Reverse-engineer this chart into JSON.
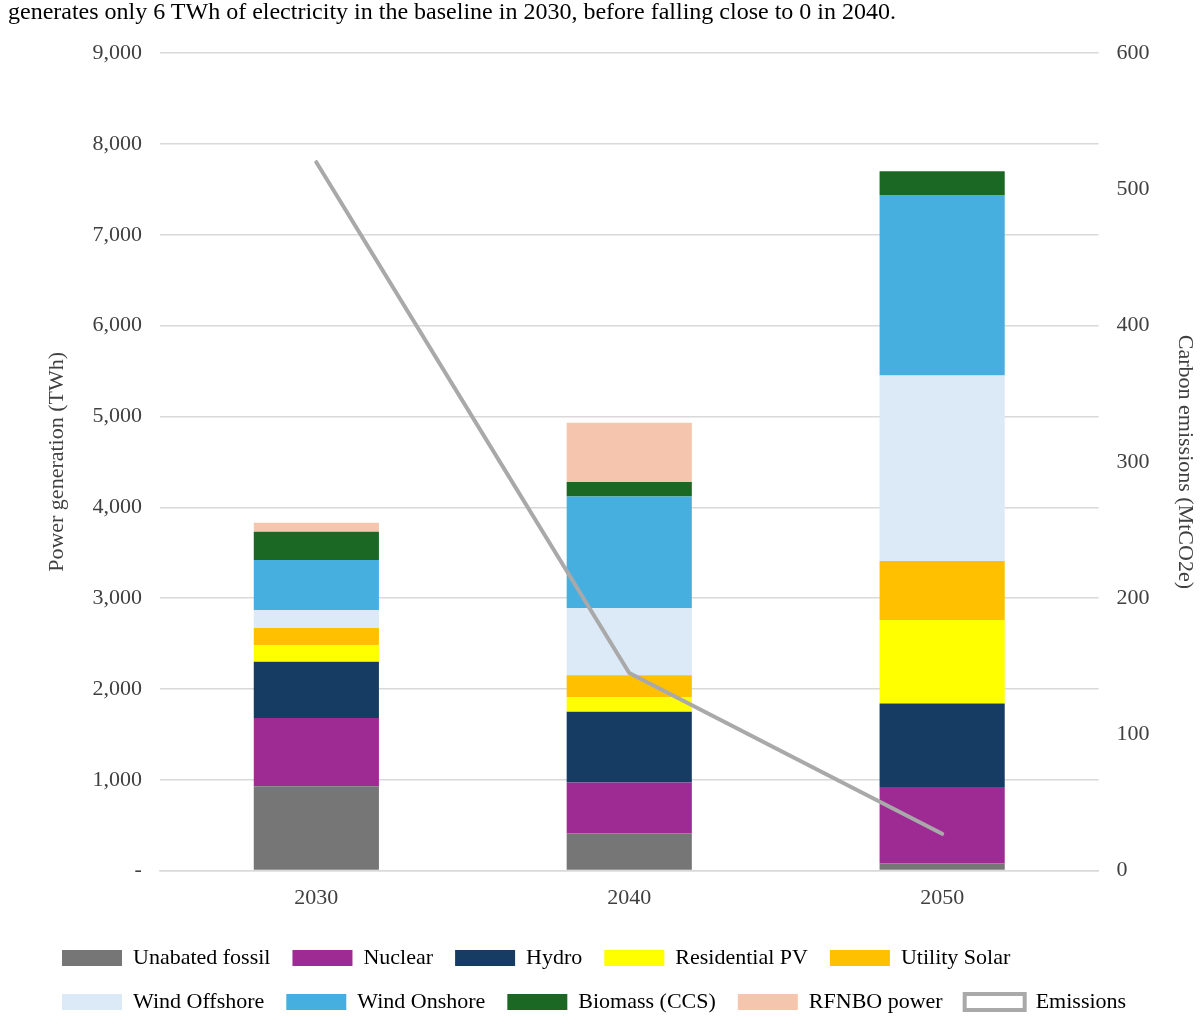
{
  "chart_data": {
    "type": "bar",
    "stacked": true,
    "annotations": [
      "generates only 6 TWh of electricity in the baseline in 2030, before falling close to 0 in 2040."
    ],
    "ylabel": "Power generation (TWh)",
    "y2label": "Carbon emissions (MtCO2e)",
    "categories": [
      "2030",
      "2040",
      "2050"
    ],
    "series": [
      {
        "name": "Unabated fossil",
        "color": "#767676",
        "values": [
          930,
          410,
          80
        ]
      },
      {
        "name": "Nuclear",
        "color": "#9e2a93",
        "values": [
          750,
          560,
          840
        ]
      },
      {
        "name": "Hydro",
        "color": "#173c63",
        "values": [
          620,
          780,
          920
        ]
      },
      {
        "name": "Residential PV",
        "color": "#ffff00",
        "values": [
          180,
          160,
          920
        ]
      },
      {
        "name": "Utility Solar",
        "color": "#ffc000",
        "values": [
          190,
          240,
          650
        ]
      },
      {
        "name": "Wind Offshore",
        "color": "#dce9f6",
        "values": [
          200,
          740,
          2040
        ]
      },
      {
        "name": "Wind Onshore",
        "color": "#46afdf",
        "values": [
          550,
          1230,
          1990
        ]
      },
      {
        "name": "Biomass (CCS)",
        "color": "#1b6824",
        "values": [
          310,
          160,
          260
        ]
      },
      {
        "name": "RFNBO power",
        "color": "#f5c6ad",
        "values": [
          100,
          650,
          0
        ]
      },
      {
        "name": "Emissions",
        "type": "line",
        "axis": "y2",
        "color": "#a9a9a9",
        "values": [
          520,
          145,
          27
        ]
      }
    ],
    "ylim": [
      0,
      9000
    ],
    "yticks": [
      {
        "value": 0,
        "label": "-"
      },
      {
        "value": 1000,
        "label": "1,000"
      },
      {
        "value": 2000,
        "label": "2,000"
      },
      {
        "value": 3000,
        "label": "3,000"
      },
      {
        "value": 4000,
        "label": "4,000"
      },
      {
        "value": 5000,
        "label": "5,000"
      },
      {
        "value": 6000,
        "label": "6,000"
      },
      {
        "value": 7000,
        "label": "7,000"
      },
      {
        "value": 8000,
        "label": "8,000"
      },
      {
        "value": 9000,
        "label": "9,000"
      }
    ],
    "y2lim": [
      0,
      600
    ],
    "y2ticks": [
      0,
      100,
      200,
      300,
      400,
      500,
      600
    ],
    "grid": "y",
    "legend": "bottom",
    "marker": "none"
  }
}
